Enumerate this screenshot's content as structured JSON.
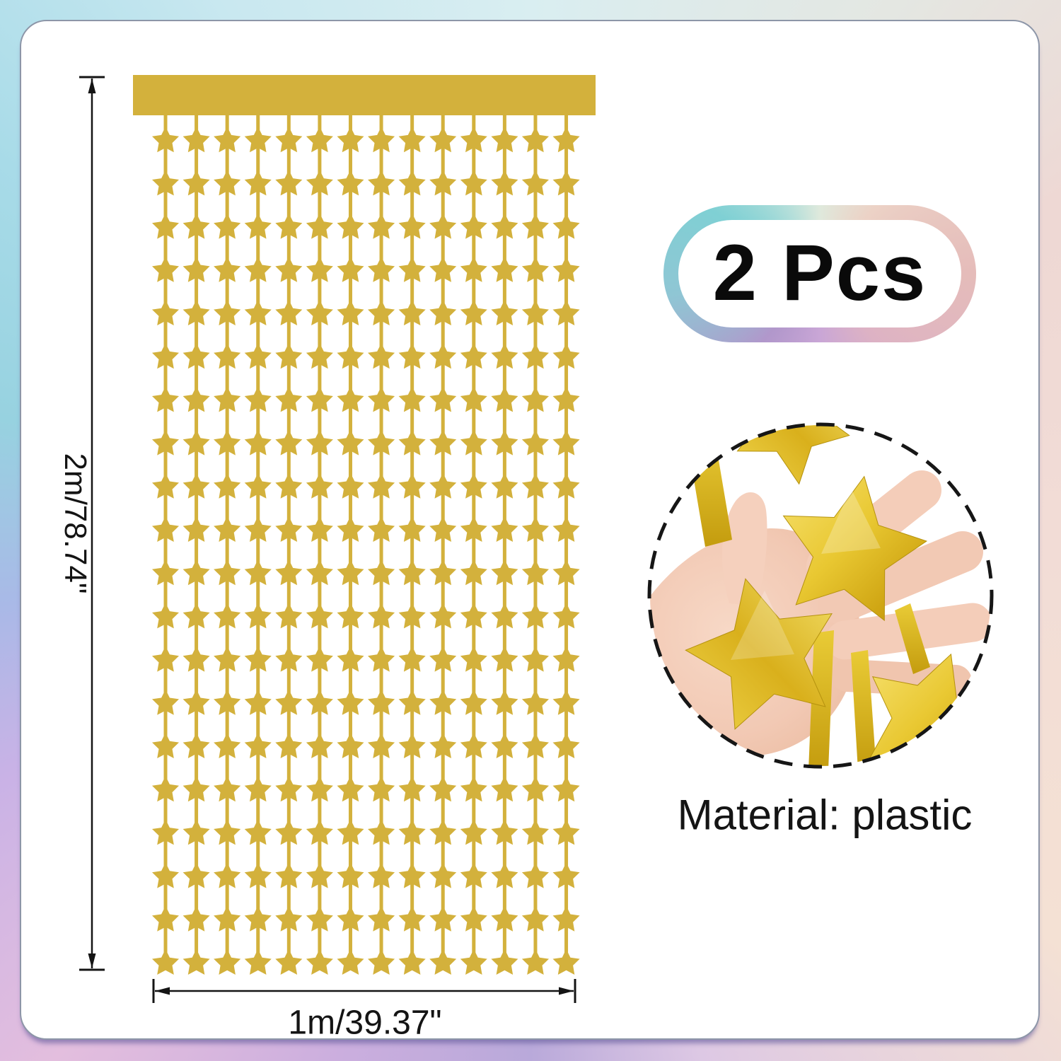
{
  "badge": {
    "label": "2 Pcs"
  },
  "dimensions": {
    "height_label": "2m/78.74\"",
    "width_label": "1m/39.37\""
  },
  "material_label": "Material: plastic",
  "curtain": {
    "columns": 14,
    "rows": 20,
    "gold_color": "#d3b13c"
  },
  "photo": {
    "subject": "hand-holding-gold-foil-star-garland",
    "foil_color": "#e8c62c",
    "skin_color": "#f2c9b4",
    "border": "dashed-circle"
  },
  "colors": {
    "dimension_line": "#141414",
    "text": "#141414",
    "panel_bg": "#ffffff"
  }
}
